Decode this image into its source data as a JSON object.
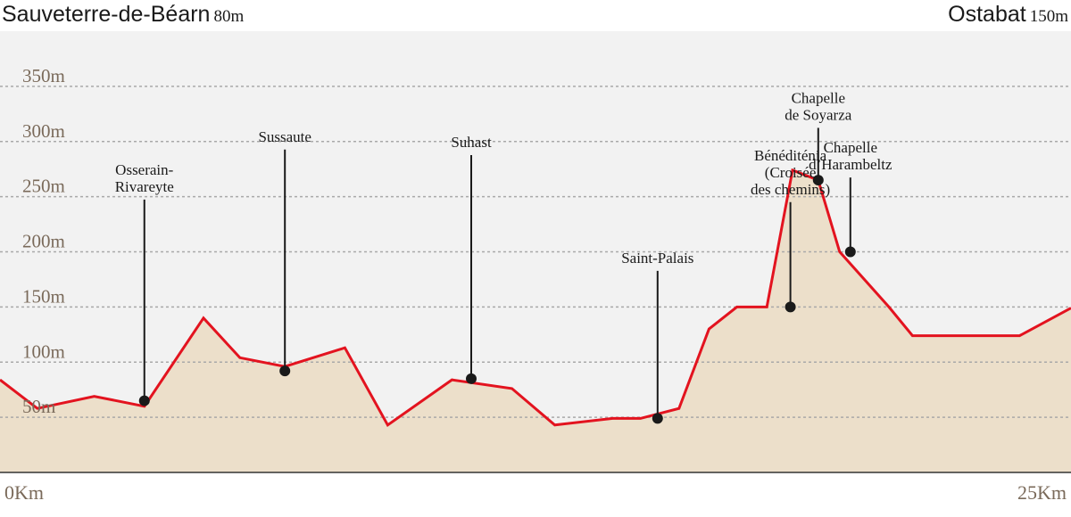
{
  "header": {
    "start_name": "Sauveterre-de-Béarn",
    "start_elev": "80m",
    "end_name": "Ostabat",
    "end_elev": "150m"
  },
  "colors": {
    "background": "#f2f2f2",
    "fill": "#ecdfca",
    "line": "#e3131f",
    "grid": "#a9a9a9",
    "marker": "#1a1a1a",
    "tick_text": "#7a6a5a"
  },
  "chart_data": {
    "type": "area",
    "x": [
      0,
      0.87,
      2.2,
      3.37,
      4.75,
      5.6,
      6.65,
      8.05,
      9.05,
      10.55,
      11.95,
      12.95,
      14.3,
      14.95,
      15.85,
      16.55,
      17.2,
      17.9,
      18.5,
      19.1,
      19.6,
      20.75,
      21.3,
      23.8,
      25
    ],
    "y": [
      84,
      58,
      69,
      60,
      140,
      104,
      96,
      113,
      43,
      84,
      76,
      43,
      49,
      49,
      58,
      130,
      150,
      150,
      274,
      265,
      200,
      150,
      124,
      124,
      149
    ],
    "xlim": [
      0,
      25
    ],
    "ylim": [
      0,
      400
    ],
    "grid": true,
    "yticks": [
      50,
      100,
      150,
      200,
      250,
      300,
      350
    ],
    "ytick_labels": [
      "50m",
      "100m",
      "150m",
      "200m",
      "250m",
      "300m",
      "350m"
    ],
    "xtick_labels": [
      "0Km",
      "25Km"
    ],
    "annotations": [
      {
        "x": 3.37,
        "y": 65,
        "lines": [
          "Osserain-",
          "Rivareyte"
        ],
        "label_y": 270
      },
      {
        "x": 6.65,
        "y": 92,
        "lines": [
          "Sussaute"
        ],
        "label_y": 300
      },
      {
        "x": 11.0,
        "y": 85,
        "lines": [
          "Suhast"
        ],
        "label_y": 295
      },
      {
        "x": 15.35,
        "y": 49,
        "lines": [
          "Saint-Palais"
        ],
        "label_y": 190
      },
      {
        "x": 18.45,
        "y": 150,
        "lines": [
          "Bénéditénia",
          "(Croisée",
          "des chemins)"
        ],
        "label_y": 283
      },
      {
        "x": 19.1,
        "y": 265,
        "lines": [
          "Chapelle",
          "de Soyarza"
        ],
        "label_y": 335
      },
      {
        "x": 19.85,
        "y": 200,
        "lines": [
          "Chapelle",
          "d’Harambeltz"
        ],
        "label_y": 290
      }
    ]
  }
}
